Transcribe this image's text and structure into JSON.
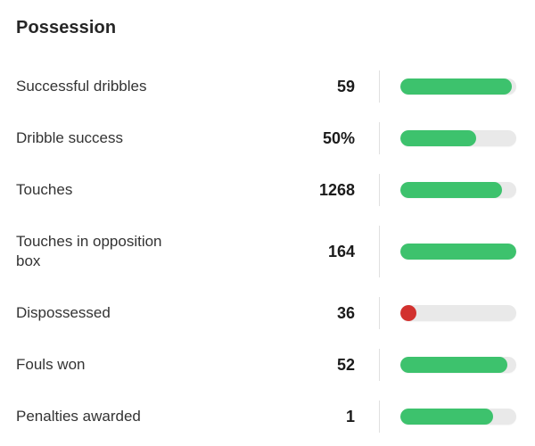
{
  "colors": {
    "green": "#3dc26d",
    "red": "#d2312e",
    "track": "#e9e9e9",
    "divider": "#e0e0e0"
  },
  "chart_data": {
    "type": "bar",
    "orientation": "horizontal",
    "title": "Possession",
    "xlim": [
      0,
      1
    ],
    "grid": false,
    "legend": false,
    "rows": [
      {
        "label": "Successful dribbles",
        "value": "59",
        "fill": 0.96,
        "color": "green"
      },
      {
        "label": "Dribble success",
        "value": "50%",
        "fill": 0.65,
        "color": "green"
      },
      {
        "label": "Touches",
        "value": "1268",
        "fill": 0.88,
        "color": "green"
      },
      {
        "label": "Touches in opposition box",
        "value": "164",
        "fill": 1.0,
        "color": "green"
      },
      {
        "label": "Dispossessed",
        "value": "36",
        "fill": 0.14,
        "color": "red"
      },
      {
        "label": "Fouls won",
        "value": "52",
        "fill": 0.92,
        "color": "green"
      },
      {
        "label": "Penalties awarded",
        "value": "1",
        "fill": 0.8,
        "color": "green"
      }
    ]
  }
}
